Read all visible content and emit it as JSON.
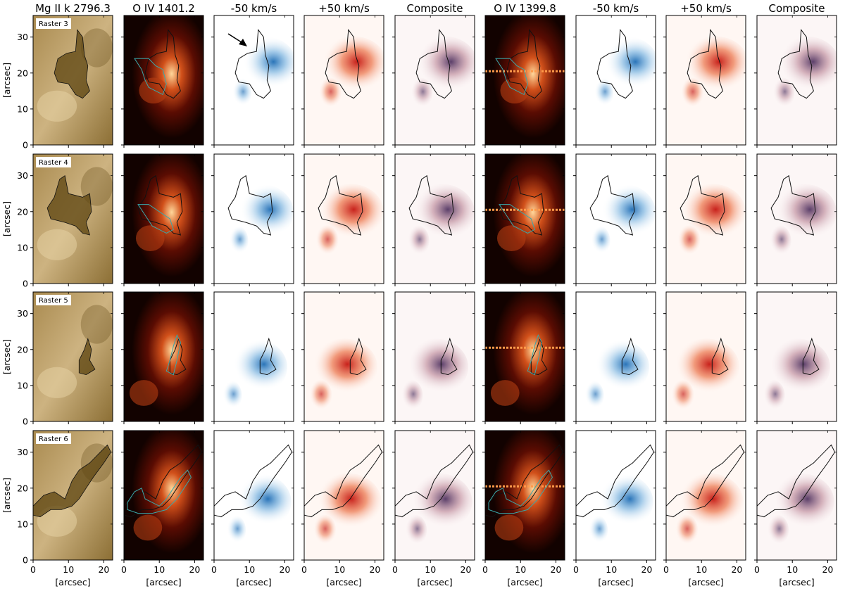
{
  "column_titles": [
    "Mg II k 2796.3",
    "O IV 1401.2",
    "-50 km/s",
    "+50 km/s",
    "Composite",
    "O IV 1399.8",
    "-50 km/s",
    "+50 km/s",
    "Composite"
  ],
  "row_labels": [
    "Raster 3",
    "Raster 4",
    "Raster 5",
    "Raster 6"
  ],
  "y_axis_label": "[arcsec]",
  "x_axis_label": "[arcsec]",
  "y_ticks": [
    "0",
    "10",
    "20",
    "30"
  ],
  "x_ticks": [
    "0",
    "10",
    "20"
  ],
  "colors": {
    "mgii_dark": "#5c4410",
    "mgii_light": "#e7d3a6",
    "oiv_dark": "#000000",
    "oiv_bright": "#ffd79a",
    "blue_wing": "#2a74b8",
    "red_wing": "#d9332a",
    "composite": "#5b3f6a",
    "contour_black": "#111111",
    "contour_cyan": "#3aa7a9"
  }
}
